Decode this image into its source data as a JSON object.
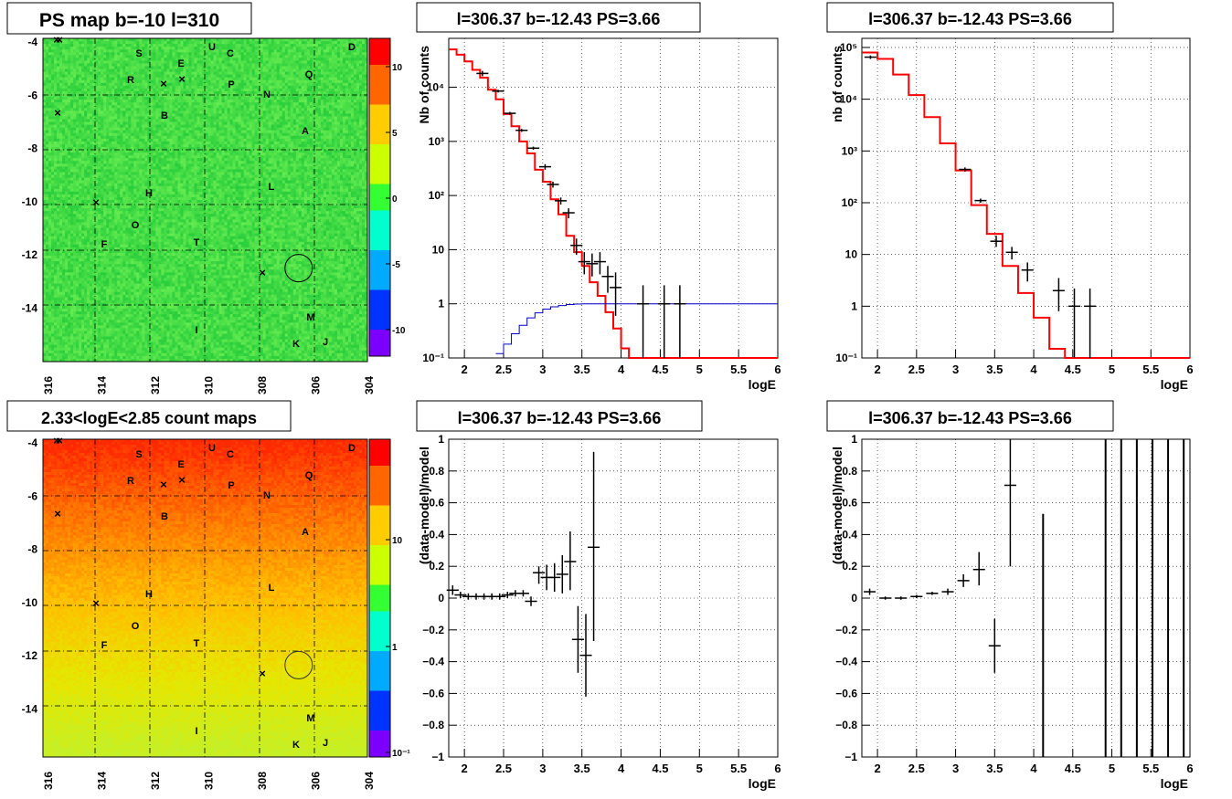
{
  "maps": {
    "x_ticks": [
      "316",
      "314",
      "312",
      "310",
      "308",
      "306",
      "304"
    ],
    "y_ticks": [
      "-4",
      "-6",
      "-8",
      "-10",
      "-12",
      "-14"
    ],
    "markers": [
      "S",
      "U",
      "C",
      "D",
      "E",
      "R",
      "P",
      "Q",
      "N",
      "B",
      "A",
      "H",
      "L",
      "O",
      "F",
      "T",
      "I",
      "M",
      "K",
      "J"
    ]
  },
  "chart_data": [
    {
      "type": "heatmap",
      "title": "PS map b=-10 l=310",
      "xlabel": "",
      "ylabel": "",
      "xlim": [
        316.3,
        303.7
      ],
      "ylim": [
        -15.9,
        -3.9
      ],
      "colorbar_ticks": [
        "10",
        "5",
        "0",
        "-5",
        "-10"
      ],
      "colorbar_range": [
        -12,
        12
      ],
      "colors": [
        "#7b00ff",
        "#0033ff",
        "#00aaff",
        "#00ffcc",
        "#33ff33",
        "#ccff00",
        "#ffcc00",
        "#ff6600",
        "#ff0000"
      ],
      "circle": {
        "l": 306.37,
        "b": -12.43
      }
    },
    {
      "type": "line",
      "title": "l=306.37 b=-12.43 PS=3.66",
      "xlabel": "logE",
      "ylabel": "Nb of counts",
      "log_y": true,
      "xlim": [
        1.8,
        6
      ],
      "ylim": [
        0.1,
        80000
      ],
      "x_ticks": [
        "2",
        "2.5",
        "3",
        "3.5",
        "4",
        "4.5",
        "5",
        "5.5",
        "6"
      ],
      "y_ticks": [
        "10⁻¹",
        "1",
        "10",
        "10²",
        "10³",
        "10⁴"
      ],
      "series": [
        {
          "color": "#ff0000",
          "style": "step",
          "x": [
            1.8,
            1.9,
            2.0,
            2.1,
            2.2,
            2.3,
            2.4,
            2.5,
            2.6,
            2.7,
            2.8,
            2.9,
            3.0,
            3.1,
            3.2,
            3.3,
            3.4,
            3.5,
            3.6,
            3.7,
            3.8,
            3.9,
            4.0,
            4.1,
            4.2,
            4.3,
            6.0
          ],
          "y": [
            50000,
            40000,
            30000,
            21000,
            15000,
            9000,
            6000,
            3200,
            1900,
            1000,
            600,
            300,
            180,
            85,
            45,
            18,
            9,
            5,
            2.5,
            1.4,
            0.7,
            0.35,
            0.15,
            0.1,
            0.1,
            0.1,
            0.1
          ]
        },
        {
          "color": "#0000cc",
          "style": "step",
          "x": [
            2.4,
            2.5,
            2.6,
            2.7,
            2.8,
            2.9,
            3.0,
            3.1,
            3.2,
            3.3,
            3.4,
            3.5,
            3.6,
            3.7,
            3.8,
            3.9,
            4.0,
            6.0
          ],
          "y": [
            0.12,
            0.18,
            0.28,
            0.4,
            0.55,
            0.68,
            0.8,
            0.88,
            0.93,
            0.97,
            0.99,
            1,
            1,
            1,
            1,
            1,
            1,
            1
          ]
        },
        {
          "color": "#000000",
          "style": "errorbar",
          "x": [
            2.23,
            2.43,
            2.58,
            2.73,
            2.88,
            3.03,
            3.13,
            3.23,
            3.33,
            3.43,
            3.53,
            3.63,
            3.73,
            3.83,
            3.93,
            4.28,
            4.55,
            4.75
          ],
          "y": [
            18000,
            8500,
            3300,
            1600,
            750,
            340,
            160,
            80,
            48,
            12,
            6,
            5.5,
            6,
            3.2,
            2,
            1,
            1,
            1
          ],
          "ylo": [
            16000,
            8000,
            3100,
            1500,
            700,
            300,
            140,
            68,
            38,
            8,
            3.5,
            3.2,
            3.5,
            1.6,
            0.6,
            0.1,
            0.1,
            0.1
          ],
          "yhi": [
            20000,
            9000,
            3500,
            1700,
            800,
            380,
            180,
            92,
            58,
            16,
            9,
            8.5,
            9,
            5,
            3.8,
            2.2,
            2.2,
            2.2
          ]
        }
      ]
    },
    {
      "type": "line",
      "title": "l=306.37 b=-12.43 PS=3.66",
      "xlabel": "logE",
      "ylabel": "nb of counts",
      "log_y": true,
      "xlim": [
        1.8,
        6
      ],
      "ylim": [
        0.1,
        150000
      ],
      "x_ticks": [
        "2",
        "2.5",
        "3",
        "3.5",
        "4",
        "4.5",
        "5",
        "5.5",
        "6"
      ],
      "y_ticks": [
        "10⁻¹",
        "1",
        "10",
        "10²",
        "10³",
        "10⁴",
        "10⁵"
      ],
      "series": [
        {
          "color": "#ff0000",
          "style": "step",
          "x": [
            1.8,
            2.0,
            2.2,
            2.4,
            2.6,
            2.8,
            3.0,
            3.2,
            3.4,
            3.6,
            3.8,
            4.0,
            4.2,
            4.4,
            6.0
          ],
          "y": [
            80000,
            60000,
            30000,
            12000,
            4500,
            1400,
            420,
            90,
            25,
            6,
            1.8,
            0.6,
            0.15,
            0.1,
            0.1
          ]
        },
        {
          "color": "#000000",
          "style": "errorbar",
          "x": [
            1.91,
            3.12,
            3.32,
            3.52,
            3.72,
            3.92,
            4.32,
            4.52,
            4.72
          ],
          "y": [
            65000,
            440,
            110,
            18,
            11,
            5,
            2,
            1,
            1
          ],
          "ylo": [
            60000,
            400,
            100,
            14,
            8,
            3,
            0.8,
            0.1,
            0.1
          ],
          "yhi": [
            70000,
            480,
            120,
            23,
            14,
            7,
            3.5,
            2.2,
            2.2
          ]
        }
      ]
    },
    {
      "type": "heatmap",
      "title": "2.33<logE<2.85 count maps",
      "xlabel": "",
      "ylabel": "",
      "xlim": [
        316.3,
        303.7
      ],
      "ylim": [
        -15.9,
        -3.9
      ],
      "colorbar_ticks": [
        "10",
        "1",
        "10⁻¹"
      ],
      "colorbar_log": true,
      "colors": [
        "#7b00ff",
        "#0033ff",
        "#00aaff",
        "#00ffcc",
        "#33ff33",
        "#ccff00",
        "#ffcc00",
        "#ff6600",
        "#ff0000"
      ],
      "circle": {
        "l": 306.37,
        "b": -12.43
      }
    },
    {
      "type": "scatter",
      "title": "l=306.37 b=-12.43 PS=3.66",
      "xlabel": "logE",
      "ylabel": "(data-model)/model",
      "xlim": [
        1.8,
        6
      ],
      "ylim": [
        -1,
        1
      ],
      "x_ticks": [
        "2",
        "2.5",
        "3",
        "3.5",
        "4",
        "4.5",
        "5",
        "5.5",
        "6"
      ],
      "y_ticks": [
        "−1",
        "−0.8",
        "−0.6",
        "−0.4",
        "−0.2",
        "0",
        "0.2",
        "0.4",
        "0.6",
        "0.8",
        "1"
      ],
      "series": [
        {
          "color": "#000000",
          "style": "errorbar",
          "x": [
            1.85,
            1.95,
            2.05,
            2.15,
            2.25,
            2.35,
            2.45,
            2.55,
            2.65,
            2.75,
            2.85,
            2.95,
            3.05,
            3.15,
            3.25,
            3.35,
            3.45,
            3.55,
            3.65
          ],
          "y": [
            0.05,
            0.02,
            0.01,
            0.01,
            0.01,
            0.01,
            0.01,
            0.02,
            0.03,
            0.03,
            -0.02,
            0.16,
            0.13,
            0.13,
            0.15,
            0.23,
            -0.26,
            -0.36,
            0.32
          ],
          "ylo": [
            0.02,
            0.0,
            -0.01,
            -0.01,
            -0.01,
            -0.01,
            -0.01,
            0.0,
            0.01,
            0.01,
            -0.05,
            0.09,
            0.05,
            0.04,
            0.03,
            0.05,
            -0.47,
            -0.62,
            -0.27
          ],
          "yhi": [
            0.08,
            0.04,
            0.03,
            0.03,
            0.03,
            0.03,
            0.03,
            0.04,
            0.05,
            0.05,
            0.01,
            0.2,
            0.21,
            0.22,
            0.27,
            0.42,
            -0.05,
            -0.1,
            0.92
          ]
        }
      ]
    },
    {
      "type": "scatter",
      "title": "l=306.37 b=-12.43 PS=3.66",
      "xlabel": "logE",
      "ylabel": "(data-model)/model",
      "xlim": [
        1.8,
        6
      ],
      "ylim": [
        -1,
        1
      ],
      "x_ticks": [
        "2",
        "2.5",
        "3",
        "3.5",
        "4",
        "4.5",
        "5",
        "5.5",
        "6"
      ],
      "y_ticks": [
        "−1",
        "−0.8",
        "−0.6",
        "−0.4",
        "−0.2",
        "0",
        "0.2",
        "0.4",
        "0.6",
        "0.8",
        "1"
      ],
      "series": [
        {
          "color": "#000000",
          "style": "errorbar",
          "x": [
            1.9,
            2.1,
            2.3,
            2.5,
            2.7,
            2.9,
            3.1,
            3.3,
            3.5,
            3.7
          ],
          "y": [
            0.04,
            0.0,
            0.0,
            0.01,
            0.03,
            0.04,
            0.11,
            0.18,
            -0.3,
            0.71
          ],
          "ylo": [
            0.02,
            -0.01,
            -0.01,
            0.0,
            0.02,
            0.02,
            0.07,
            0.08,
            -0.47,
            0.2
          ],
          "yhi": [
            0.06,
            0.01,
            0.01,
            0.02,
            0.04,
            0.06,
            0.15,
            0.29,
            -0.13,
            1.0
          ]
        },
        {
          "color": "#000000",
          "style": "vline",
          "x": [
            4.12,
            4.92,
            5.12,
            5.32,
            5.52,
            5.72,
            5.92
          ],
          "ylo": [
            -1,
            -1,
            -1,
            -1,
            -1,
            -1,
            -1
          ],
          "yhi": [
            0.53,
            1,
            1,
            1,
            1,
            1,
            1
          ]
        }
      ]
    }
  ]
}
